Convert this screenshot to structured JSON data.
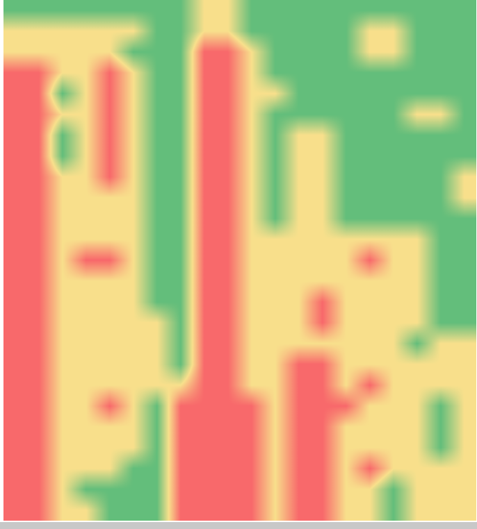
{
  "chart_data": {
    "type": "heatmap",
    "tick_labels": false,
    "cells": [
      [
        0,
        0,
        0,
        0,
        0,
        0,
        0,
        0,
        1,
        1,
        0,
        0,
        0,
        0,
        0,
        0,
        0,
        0,
        0,
        0
      ],
      [
        1,
        1,
        1,
        1,
        1,
        1,
        0,
        0,
        1,
        1,
        0,
        0,
        0,
        0,
        0,
        1,
        1,
        0,
        0,
        0
      ],
      [
        1,
        1,
        1,
        1,
        1,
        0,
        0,
        0,
        2,
        2,
        1,
        0,
        0,
        0,
        0,
        1,
        1,
        0,
        0,
        0
      ],
      [
        2,
        2,
        1,
        1,
        2,
        1,
        0,
        0,
        2,
        2,
        1,
        0,
        0,
        0,
        0,
        0,
        0,
        0,
        0,
        0
      ],
      [
        2,
        2,
        0,
        1,
        2,
        1,
        0,
        0,
        2,
        2,
        1,
        1,
        0,
        0,
        0,
        0,
        0,
        0,
        0,
        0
      ],
      [
        2,
        2,
        1,
        1,
        2,
        1,
        0,
        0,
        2,
        2,
        1,
        0,
        0,
        0,
        0,
        0,
        0,
        1,
        1,
        0
      ],
      [
        2,
        2,
        0,
        1,
        2,
        1,
        0,
        0,
        2,
        2,
        1,
        0,
        1,
        1,
        0,
        0,
        0,
        0,
        0,
        0
      ],
      [
        2,
        2,
        0,
        1,
        2,
        1,
        0,
        0,
        2,
        2,
        1,
        0,
        1,
        1,
        0,
        0,
        0,
        0,
        0,
        0
      ],
      [
        2,
        2,
        1,
        1,
        2,
        1,
        0,
        0,
        2,
        2,
        1,
        0,
        1,
        1,
        0,
        0,
        0,
        0,
        0,
        1
      ],
      [
        2,
        2,
        1,
        1,
        1,
        1,
        0,
        0,
        2,
        2,
        1,
        0,
        1,
        1,
        0,
        0,
        0,
        0,
        0,
        1
      ],
      [
        2,
        2,
        1,
        1,
        1,
        1,
        0,
        0,
        2,
        2,
        1,
        0,
        1,
        1,
        0,
        0,
        0,
        0,
        0,
        0
      ],
      [
        2,
        2,
        1,
        1,
        1,
        1,
        0,
        0,
        2,
        2,
        1,
        1,
        1,
        1,
        1,
        1,
        1,
        1,
        0,
        0
      ],
      [
        2,
        2,
        1,
        2,
        2,
        1,
        0,
        0,
        2,
        2,
        1,
        1,
        1,
        1,
        1,
        2,
        1,
        1,
        0,
        0
      ],
      [
        2,
        2,
        1,
        1,
        1,
        1,
        0,
        0,
        2,
        2,
        1,
        1,
        1,
        1,
        1,
        1,
        1,
        1,
        0,
        0
      ],
      [
        2,
        2,
        1,
        1,
        1,
        1,
        0,
        0,
        2,
        2,
        1,
        1,
        1,
        2,
        1,
        1,
        1,
        1,
        0,
        0
      ],
      [
        2,
        2,
        1,
        1,
        1,
        1,
        1,
        0,
        2,
        2,
        1,
        1,
        1,
        2,
        1,
        1,
        1,
        1,
        0,
        0
      ],
      [
        2,
        2,
        1,
        1,
        1,
        1,
        1,
        0,
        2,
        2,
        1,
        1,
        1,
        1,
        1,
        1,
        1,
        0,
        1,
        1
      ],
      [
        2,
        2,
        1,
        1,
        1,
        1,
        1,
        0,
        2,
        2,
        1,
        1,
        2,
        2,
        1,
        1,
        1,
        1,
        1,
        1
      ],
      [
        2,
        2,
        1,
        1,
        1,
        1,
        1,
        1,
        2,
        2,
        1,
        1,
        2,
        2,
        1,
        2,
        1,
        1,
        1,
        1
      ],
      [
        2,
        2,
        1,
        1,
        2,
        1,
        0,
        2,
        2,
        2,
        2,
        1,
        2,
        2,
        2,
        1,
        1,
        1,
        0,
        1
      ],
      [
        2,
        2,
        1,
        1,
        1,
        1,
        0,
        2,
        2,
        2,
        2,
        1,
        2,
        2,
        1,
        1,
        1,
        1,
        0,
        1
      ],
      [
        2,
        2,
        1,
        1,
        1,
        1,
        0,
        2,
        2,
        2,
        2,
        1,
        2,
        2,
        1,
        1,
        1,
        1,
        0,
        1
      ],
      [
        2,
        2,
        1,
        1,
        1,
        0,
        0,
        2,
        2,
        2,
        2,
        1,
        2,
        2,
        1,
        2,
        1,
        1,
        1,
        1
      ],
      [
        2,
        2,
        1,
        0,
        0,
        0,
        0,
        2,
        2,
        2,
        2,
        1,
        2,
        2,
        1,
        1,
        0,
        1,
        1,
        1
      ],
      [
        2,
        2,
        1,
        1,
        0,
        0,
        0,
        2,
        2,
        2,
        2,
        1,
        2,
        2,
        1,
        1,
        0,
        1,
        1,
        1
      ]
    ]
  }
}
